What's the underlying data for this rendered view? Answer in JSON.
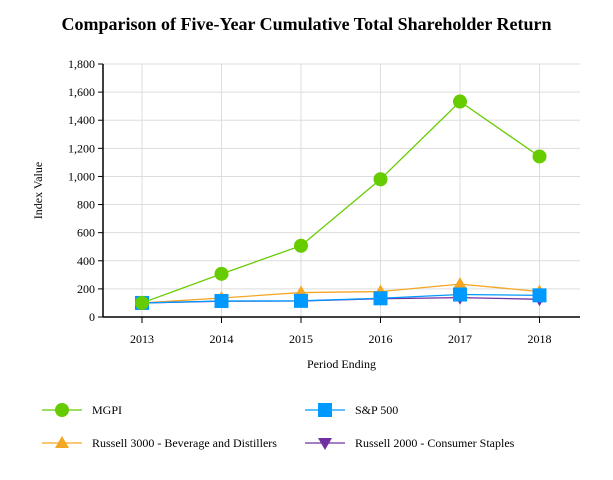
{
  "chart_data": {
    "type": "line",
    "title": "Comparison of Five-Year Cumulative Total Shareholder Return",
    "xlabel": "Period Ending",
    "ylabel": "Index Value",
    "categories": [
      "2013",
      "2014",
      "2015",
      "2016",
      "2017",
      "2018"
    ],
    "ylim": [
      0,
      1800
    ],
    "yticks": [
      0,
      200,
      400,
      600,
      800,
      1000,
      1200,
      1400,
      1600,
      1800
    ],
    "ytick_labels": [
      "0",
      "200",
      "400",
      "600",
      "800",
      "1,000",
      "1,200",
      "1,400",
      "1,600",
      "1,800"
    ],
    "grid": true,
    "legend_position": "bottom",
    "series": [
      {
        "name": "MGPI",
        "color": "#66cc00",
        "marker": "circle",
        "values": [
          100,
          307,
          507,
          980,
          1533,
          1142
        ]
      },
      {
        "name": "S&P 500",
        "color": "#0099ff",
        "marker": "square",
        "values": [
          100,
          114,
          115,
          133,
          160,
          154
        ]
      },
      {
        "name": "Russell 3000 - Beverage and Distillers",
        "color": "#f5a623",
        "marker": "triangle-up",
        "values": [
          100,
          135,
          174,
          181,
          234,
          181
        ]
      },
      {
        "name": "Russell 2000 - Consumer Staples",
        "color": "#7030a0",
        "marker": "triangle-down",
        "values": [
          100,
          112,
          114,
          130,
          138,
          126
        ]
      }
    ]
  }
}
